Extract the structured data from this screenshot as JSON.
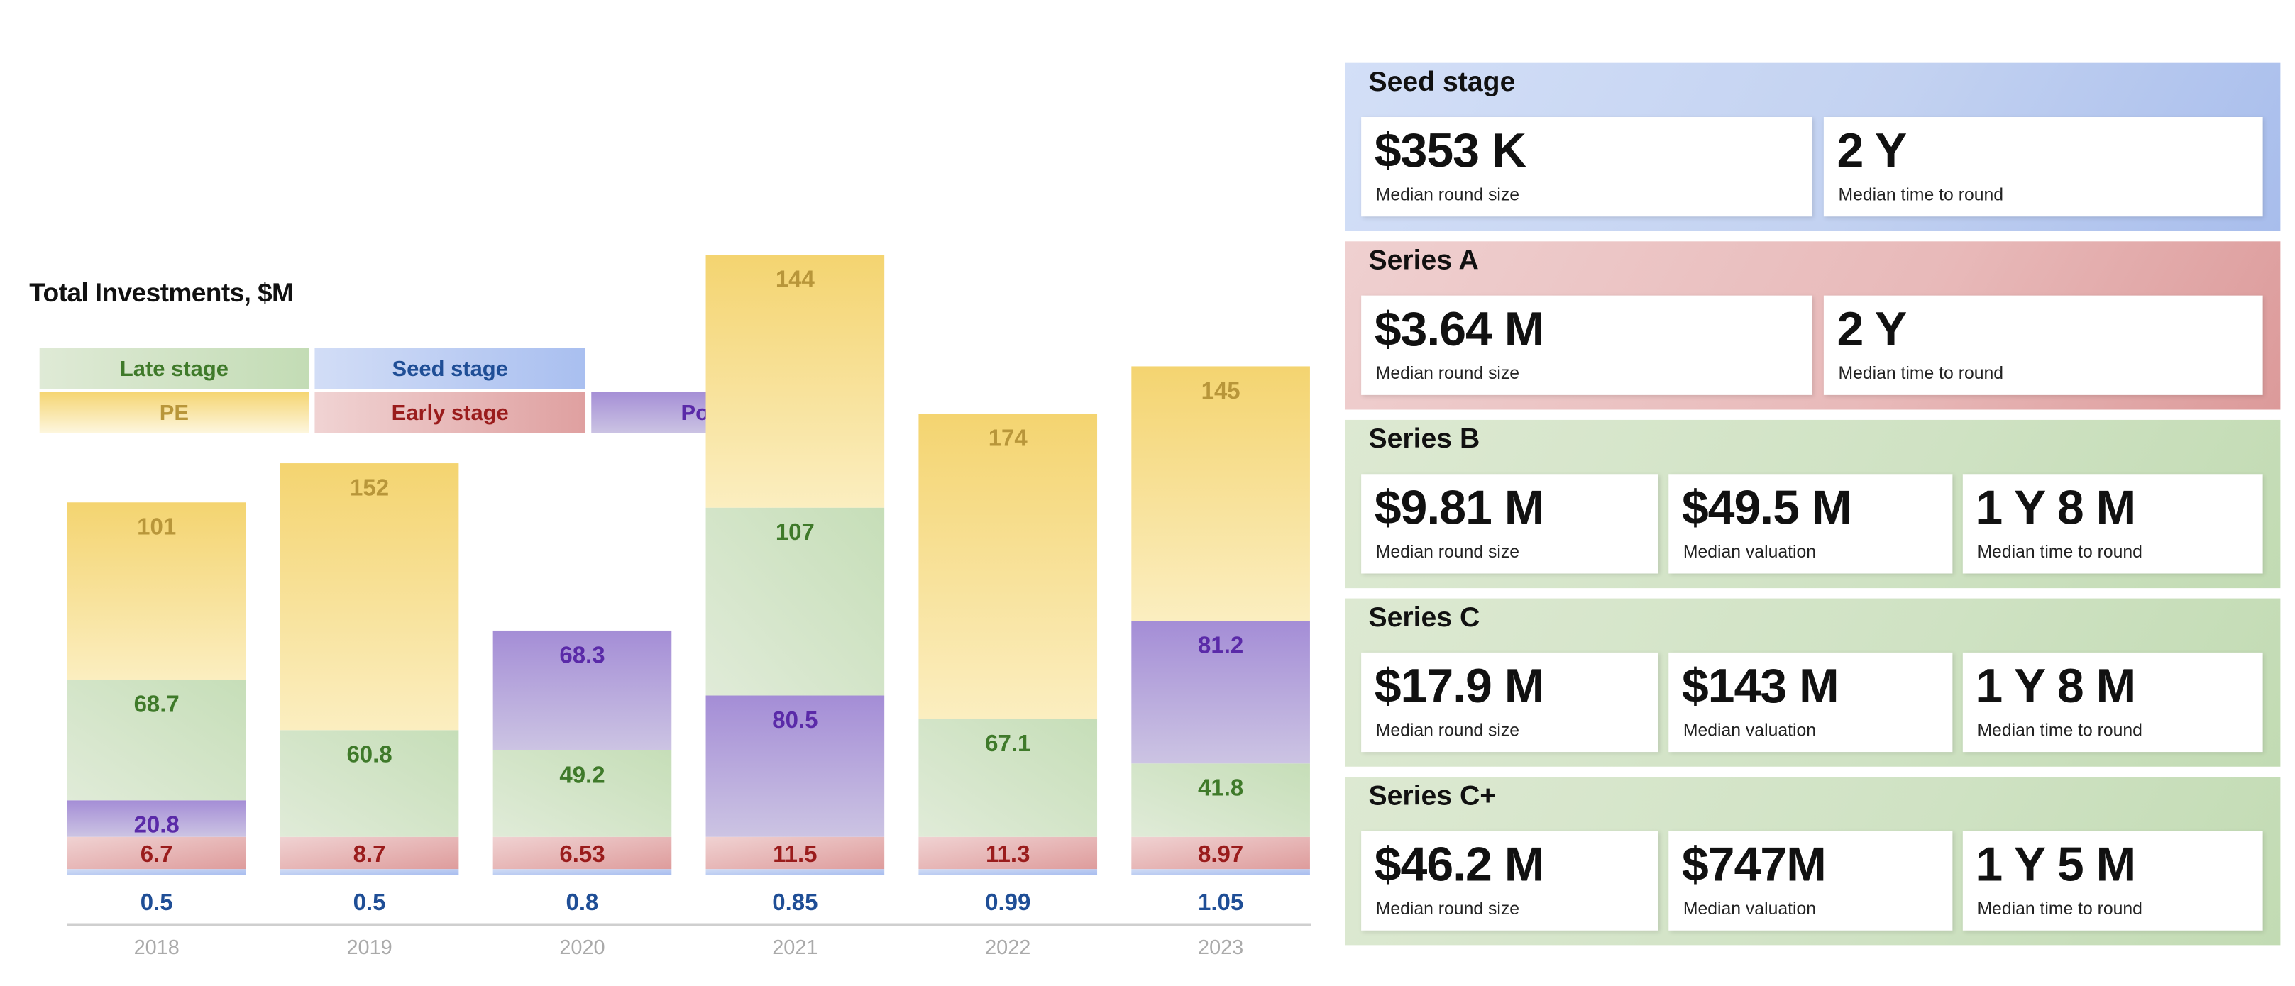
{
  "chart_data": {
    "type": "bar",
    "stacked": true,
    "title": "Total Investments, $M",
    "categories": [
      "2018",
      "2019",
      "2020",
      "2021",
      "2022",
      "2023"
    ],
    "legend": [
      {
        "key": "late",
        "name": "Late stage",
        "color": "#c6deb8",
        "text_color": "#3f7a2a"
      },
      {
        "key": "seed",
        "name": "Seed stage",
        "color": "#b7c9f2",
        "text_color": "#1f4e96"
      },
      {
        "key": "pe",
        "name": "PE",
        "color": "#f5d572",
        "text_color": "#b8963a"
      },
      {
        "key": "early",
        "name": "Early stage",
        "color": "#e6b3b3",
        "text_color": "#9a1c1c"
      },
      {
        "key": "post",
        "name": "Post IPO",
        "color": "#b3a3dc",
        "text_color": "#5a2aa8"
      }
    ],
    "series": [
      {
        "name": "Seed stage",
        "key": "seed",
        "values": [
          0.5,
          0.5,
          0.8,
          0.85,
          0.99,
          1.05
        ]
      },
      {
        "name": "Early stage",
        "key": "early",
        "values": [
          6.7,
          8.7,
          6.53,
          11.5,
          11.3,
          8.97
        ]
      },
      {
        "name": "Post IPO",
        "key": "post",
        "values": [
          20.8,
          null,
          68.3,
          80.5,
          null,
          81.2
        ]
      },
      {
        "name": "Late stage",
        "key": "late",
        "values": [
          68.7,
          60.8,
          49.2,
          107,
          67.1,
          41.8
        ]
      },
      {
        "name": "PE",
        "key": "pe",
        "values": [
          101,
          152,
          null,
          144,
          174,
          145
        ]
      }
    ],
    "stack_order": [
      [
        "seed",
        "early",
        "post",
        "late",
        "pe"
      ],
      [
        "seed",
        "early",
        "late",
        "pe"
      ],
      [
        "seed",
        "early",
        "late",
        "post"
      ],
      [
        "seed",
        "early",
        "post",
        "late",
        "pe"
      ],
      [
        "seed",
        "early",
        "late",
        "pe"
      ],
      [
        "seed",
        "early",
        "late",
        "post",
        "pe"
      ]
    ],
    "grid": false,
    "legend_placement": "top-left"
  },
  "legend_labels": {
    "late": "Late stage",
    "seed": "Seed stage",
    "pe": "PE",
    "early": "Early stage",
    "post": "Post IPO"
  },
  "cards": [
    {
      "title": "Seed stage",
      "stats": [
        {
          "value": "$353 K",
          "label": "Median round size"
        },
        {
          "value": "2 Y",
          "label": "Median time to round"
        }
      ]
    },
    {
      "title": "Series A",
      "stats": [
        {
          "value": "$3.64 M",
          "label": "Median round size"
        },
        {
          "value": "2 Y",
          "label": "Median time to round"
        }
      ]
    },
    {
      "title": "Series B",
      "stats": [
        {
          "value": "$9.81 M",
          "label": "Median round size"
        },
        {
          "value": "$49.5 M",
          "label": "Median valuation"
        },
        {
          "value": "1 Y 8 M",
          "label": "Median time to round"
        }
      ]
    },
    {
      "title": "Series C",
      "stats": [
        {
          "value": "$17.9 M",
          "label": "Median round size"
        },
        {
          "value": "$143 M",
          "label": "Median valuation"
        },
        {
          "value": "1 Y 8 M",
          "label": "Median time to round"
        }
      ]
    },
    {
      "title": "Series C+",
      "stats": [
        {
          "value": "$46.2 M",
          "label": "Median round size"
        },
        {
          "value": "$747M",
          "label": "Median valuation"
        },
        {
          "value": "1 Y 5 M",
          "label": "Median time to round"
        }
      ]
    }
  ]
}
